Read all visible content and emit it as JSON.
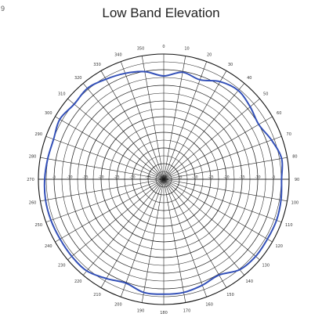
{
  "corner_mark": "9",
  "chart_data": {
    "type": "polar-line",
    "title": "Low Band Elevation",
    "angle_unit": "degrees",
    "angle_zero": "top",
    "angle_direction": "clockwise",
    "angular_ticks": [
      "0",
      "10",
      "20",
      "30",
      "40",
      "50",
      "60",
      "70",
      "80",
      "90",
      "100",
      "110",
      "120",
      "130",
      "140",
      "150",
      "160",
      "170",
      "180",
      "190",
      "200",
      "210",
      "220",
      "230",
      "240",
      "250",
      "260",
      "270",
      "280",
      "290",
      "300",
      "310",
      "320",
      "330",
      "340",
      "350"
    ],
    "radial_range_db": [
      -40,
      0
    ],
    "radial_ring_labels": [
      "-5",
      "-10",
      "-15",
      "-20",
      "-25",
      "-30",
      "-35",
      "-40"
    ],
    "grid": true,
    "series": [
      {
        "color": "#3350b8",
        "angles": [
          0,
          10,
          20,
          30,
          40,
          50,
          60,
          70,
          80,
          90,
          100,
          110,
          120,
          130,
          140,
          150,
          160,
          170,
          180,
          190,
          200,
          210,
          220,
          230,
          240,
          250,
          260,
          270,
          280,
          290,
          300,
          310,
          320,
          330,
          340,
          350
        ],
        "values_db": [
          -7.0,
          -5.3,
          -6.2,
          -4.0,
          -3.0,
          -4.0,
          -5.0,
          -3.4,
          -1.8,
          -2.4,
          -2.0,
          -1.7,
          -1.8,
          -1.7,
          -2.3,
          -4.7,
          -4.0,
          -3.3,
          -3.3,
          -3.3,
          -4.7,
          -3.4,
          -1.8,
          -1.7,
          -1.8,
          -1.7,
          -1.7,
          -2.0,
          -2.4,
          -2.6,
          -1.7,
          -2.7,
          -2.1,
          -3.1,
          -4.0,
          -5.1
        ]
      }
    ]
  }
}
